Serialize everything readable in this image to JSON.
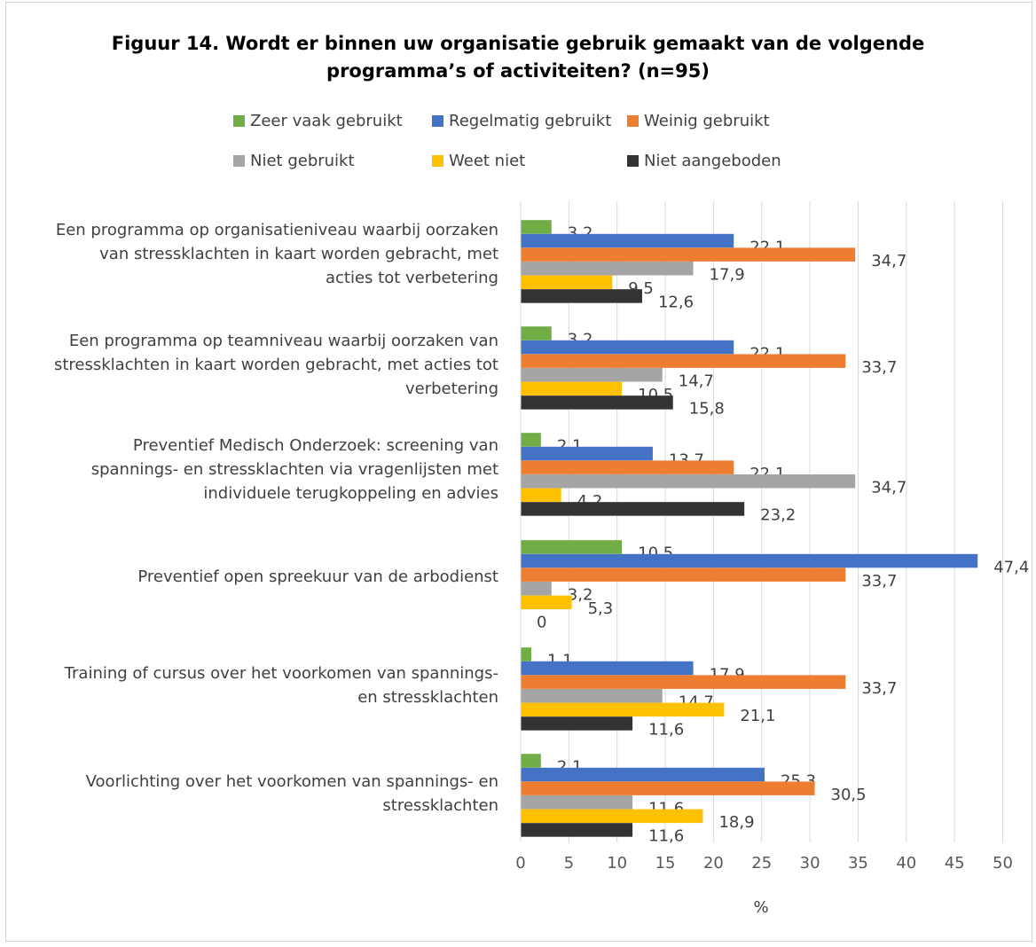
{
  "chart_data": {
    "type": "bar",
    "orientation": "horizontal",
    "title_lines": [
      "Figuur 14. Wordt er binnen uw organisatie gebruik gemaakt van de volgende",
      "programma’s of activiteiten? (n=95)"
    ],
    "xlabel": "%",
    "xlim": [
      0,
      50
    ],
    "xticks": [
      "0",
      "5",
      "10",
      "15",
      "20",
      "25",
      "30",
      "35",
      "40",
      "45",
      "50"
    ],
    "grid": true,
    "legend_position": "top",
    "categories": [
      [
        "Een programma op organisatieniveau waarbij oorzaken",
        "van stressklachten in kaart worden gebracht, met",
        "acties tot verbetering"
      ],
      [
        "Een programma op teamniveau waarbij oorzaken van",
        "stressklachten in kaart worden gebracht, met acties tot",
        "verbetering"
      ],
      [
        "Preventief Medisch Onderzoek: screening van",
        "spannings- en stressklachten via vragenlijsten met",
        "individuele terugkoppeling en advies"
      ],
      [
        "Preventief open spreekuur van de arbodienst"
      ],
      [
        "Training of cursus over het voorkomen van spannings-",
        "en stressklachten"
      ],
      [
        "Voorlichting over het voorkomen van spannings- en",
        "stressklachten"
      ]
    ],
    "series": [
      {
        "name": "Zeer vaak gebruikt",
        "color": "#70ad47",
        "values": [
          3.2,
          3.2,
          2.1,
          10.5,
          1.1,
          2.1
        ],
        "labels": [
          "3,2",
          "3,2",
          "2,1",
          "10,5",
          "1,1",
          "2,1"
        ]
      },
      {
        "name": "Regelmatig gebruikt",
        "color": "#4472c4",
        "values": [
          22.1,
          22.1,
          13.7,
          47.4,
          17.9,
          25.3
        ],
        "labels": [
          "22,1",
          "22,1",
          "13,7",
          "47,4",
          "17,9",
          "25,3"
        ]
      },
      {
        "name": "Weinig gebruikt",
        "color": "#ed7d31",
        "values": [
          34.7,
          33.7,
          22.1,
          33.7,
          33.7,
          30.5
        ],
        "labels": [
          "34,7",
          "33,7",
          "22,1",
          "33,7",
          "33,7",
          "30,5"
        ]
      },
      {
        "name": "Niet gebruikt",
        "color": "#a5a5a5",
        "values": [
          17.9,
          14.7,
          34.7,
          3.2,
          14.7,
          11.6
        ],
        "labels": [
          "17,9",
          "14,7",
          "34,7",
          "3,2",
          "14,7",
          "11,6"
        ]
      },
      {
        "name": "Weet niet",
        "color": "#ffc000",
        "values": [
          9.5,
          10.5,
          4.2,
          5.3,
          21.1,
          18.9
        ],
        "labels": [
          "9,5",
          "10,5",
          "4,2",
          "5,3",
          "21,1",
          "18,9"
        ]
      },
      {
        "name": "Niet aangeboden",
        "color": "#333333",
        "values": [
          12.6,
          15.8,
          23.2,
          0,
          11.6,
          11.6
        ],
        "labels": [
          "12,6",
          "15,8",
          "23,2",
          "0",
          "11,6",
          "11,6"
        ]
      }
    ]
  }
}
